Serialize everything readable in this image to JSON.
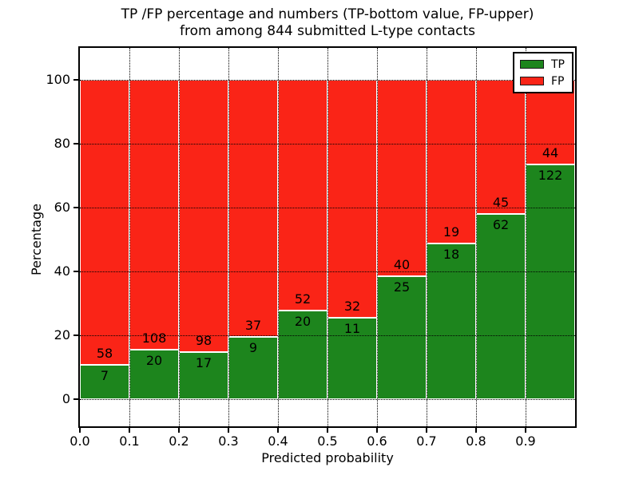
{
  "title": {
    "line1": "TP /FP percentage and numbers (TP-bottom value, FP-upper)",
    "line2": "from among 844 submitted L-type contacts"
  },
  "chart_data": {
    "type": "bar",
    "stacked": true,
    "normalized_to_percent": 100,
    "total_contacts": 844,
    "xlabel": "Predicted probability",
    "ylabel": "Percentage",
    "x_tick_labels": [
      "0.0",
      "0.1",
      "0.2",
      "0.3",
      "0.4",
      "0.5",
      "0.6",
      "0.7",
      "0.8",
      "0.9"
    ],
    "y_ticks": [
      0,
      20,
      40,
      60,
      80,
      100
    ],
    "xlim": [
      0.0,
      1.0
    ],
    "ylim": [
      -8.5,
      110
    ],
    "grid": "dotted-black-above-bars",
    "bar_edge_color": "#ffffff",
    "series": [
      {
        "name": "TP",
        "color": "#1d851d",
        "counts": [
          7,
          20,
          17,
          9,
          20,
          11,
          25,
          18,
          62,
          122
        ]
      },
      {
        "name": "FP",
        "color": "#fa2417",
        "counts": [
          58,
          108,
          98,
          37,
          52,
          32,
          40,
          19,
          45,
          44
        ]
      }
    ],
    "tp_percent_per_bin": [
      10.8,
      15.6,
      14.8,
      19.6,
      27.8,
      25.6,
      38.5,
      48.6,
      57.9,
      73.5
    ],
    "legend": {
      "position": "upper right",
      "entries": [
        {
          "label": "TP",
          "color": "#1d851d"
        },
        {
          "label": "FP",
          "color": "#fa2417"
        }
      ]
    }
  }
}
